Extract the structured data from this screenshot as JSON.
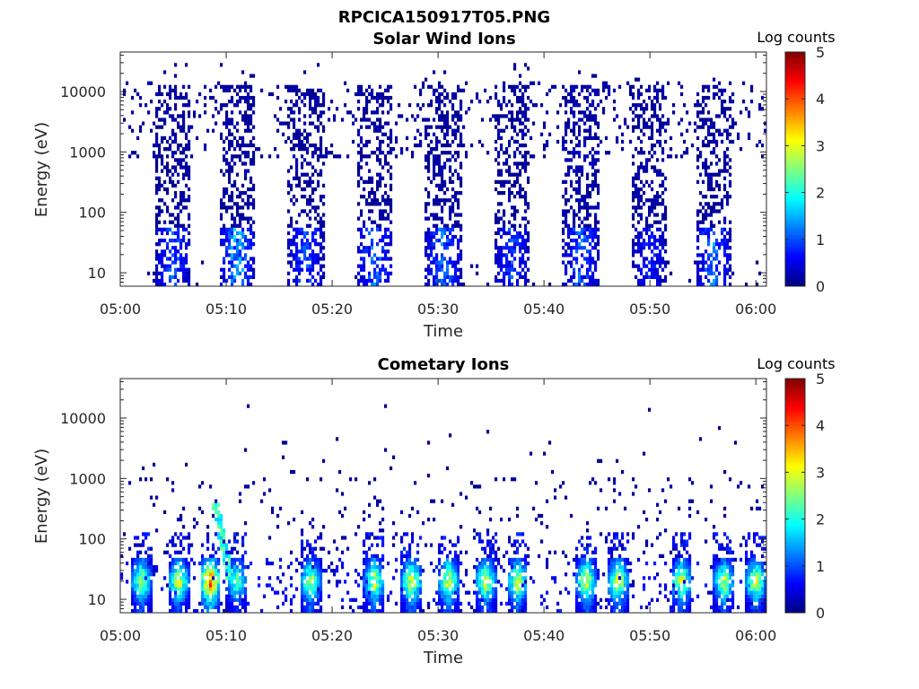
{
  "figure_title": "RPCICA150917T05.PNG",
  "chart_data": [
    {
      "type": "heatmap",
      "title": "Solar Wind Ions",
      "xlabel": "Time",
      "ylabel": "Energy (eV)",
      "x_ticks": [
        "05:00",
        "05:10",
        "05:20",
        "05:30",
        "05:40",
        "05:50",
        "06:00"
      ],
      "xlim_minutes": [
        0,
        61
      ],
      "y_ticks": [
        "10",
        "100",
        "1000",
        "10000"
      ],
      "y_scale": "log",
      "ylim": [
        6,
        45000
      ],
      "colorbar": {
        "label": "Log counts",
        "range": [
          0,
          5
        ],
        "ticks": [
          "0",
          "1",
          "2",
          "3",
          "4",
          "5"
        ],
        "colormap": "jet"
      },
      "bursts": [
        {
          "center_min": 5.0,
          "low_intensity": 1.2,
          "high_energy_intensity": 0.2
        },
        {
          "center_min": 11.0,
          "low_intensity": 1.8,
          "high_energy_intensity": 0.2
        },
        {
          "center_min": 17.5,
          "low_intensity": 1.2,
          "high_energy_intensity": 0.2
        },
        {
          "center_min": 24.0,
          "low_intensity": 1.4,
          "high_energy_intensity": 0.2
        },
        {
          "center_min": 30.5,
          "low_intensity": 1.4,
          "high_energy_intensity": 0.2
        },
        {
          "center_min": 37.0,
          "low_intensity": 1.1,
          "high_energy_intensity": 0.2
        },
        {
          "center_min": 43.5,
          "low_intensity": 1.3,
          "high_energy_intensity": 0.3
        },
        {
          "center_min": 50.0,
          "low_intensity": 0.9,
          "high_energy_intensity": 0.2
        },
        {
          "center_min": 56.0,
          "low_intensity": 1.4,
          "high_energy_intensity": 0.2
        }
      ]
    },
    {
      "type": "heatmap",
      "title": "Cometary Ions",
      "xlabel": "Time",
      "ylabel": "Energy (eV)",
      "x_ticks": [
        "05:00",
        "05:10",
        "05:20",
        "05:30",
        "05:40",
        "05:50",
        "06:00"
      ],
      "xlim_minutes": [
        0,
        61
      ],
      "y_ticks": [
        "10",
        "100",
        "1000",
        "10000"
      ],
      "y_scale": "log",
      "ylim": [
        6,
        45000
      ],
      "colorbar": {
        "label": "Log counts",
        "range": [
          0,
          5
        ],
        "ticks": [
          "0",
          "1",
          "2",
          "3",
          "4",
          "5"
        ],
        "colormap": "jet"
      },
      "bursts": [
        {
          "center_min": 2.0,
          "peak_intensity": 2.8
        },
        {
          "center_min": 5.5,
          "peak_intensity": 3.0
        },
        {
          "center_min": 8.5,
          "peak_intensity": 4.0
        },
        {
          "center_min": 11.0,
          "peak_intensity": 2.5
        },
        {
          "center_min": 18.0,
          "peak_intensity": 2.8
        },
        {
          "center_min": 24.0,
          "peak_intensity": 2.9
        },
        {
          "center_min": 27.5,
          "peak_intensity": 3.1
        },
        {
          "center_min": 31.0,
          "peak_intensity": 3.0
        },
        {
          "center_min": 34.5,
          "peak_intensity": 2.9
        },
        {
          "center_min": 37.5,
          "peak_intensity": 2.9
        },
        {
          "center_min": 44.0,
          "peak_intensity": 3.0
        },
        {
          "center_min": 47.0,
          "peak_intensity": 3.1
        },
        {
          "center_min": 53.0,
          "peak_intensity": 2.9
        },
        {
          "center_min": 57.0,
          "peak_intensity": 2.8
        },
        {
          "center_min": 60.0,
          "peak_intensity": 3.0
        }
      ]
    }
  ]
}
